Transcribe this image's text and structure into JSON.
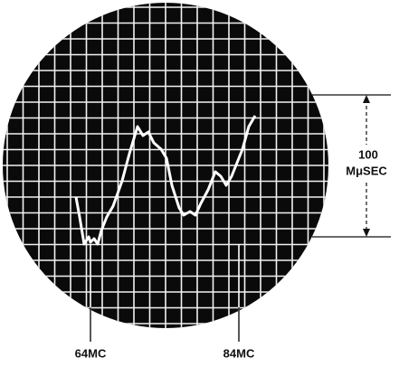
{
  "labels": {
    "left_marker": "64MC",
    "right_marker": "84MC",
    "scale_value": "100",
    "scale_unit": "MμSEC"
  }
}
